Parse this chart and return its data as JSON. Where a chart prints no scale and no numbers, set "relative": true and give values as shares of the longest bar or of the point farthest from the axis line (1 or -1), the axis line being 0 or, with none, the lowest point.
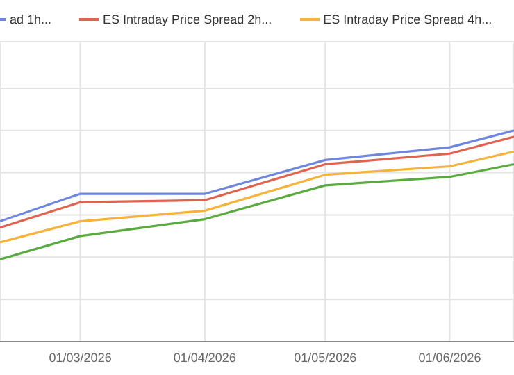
{
  "chart_data": {
    "type": "line",
    "relative": true,
    "x": [
      "2026-02-09",
      "2026-03-01",
      "2026-04-01",
      "2026-05-01",
      "2026-06-01",
      "2026-06-17"
    ],
    "xlim": [
      "2026-02-09",
      "2026-06-17"
    ],
    "xticks": [
      {
        "value": "2026-03-01",
        "label": "01/03/2026"
      },
      {
        "value": "2026-04-01",
        "label": "01/04/2026"
      },
      {
        "value": "2026-05-01",
        "label": "01/05/2026"
      },
      {
        "value": "2026-06-01",
        "label": "01/06/2026"
      }
    ],
    "series": [
      {
        "name": "ad 1h...",
        "color": "#6f86e0",
        "values": [
          0.57,
          0.7,
          0.7,
          0.86,
          0.92,
          1
        ]
      },
      {
        "name": "ES Intraday Price Spread 2h...",
        "color": "#e0634f",
        "values": [
          0.54,
          0.66,
          0.67,
          0.84,
          0.89,
          0.97
        ]
      },
      {
        "name": "ES Intraday Price Spread 4h...",
        "color": "#f7b23b",
        "values": [
          0.47,
          0.57,
          0.62,
          0.79,
          0.83,
          0.9
        ]
      },
      {
        "color": "#5aab3f",
        "values": [
          0.39,
          0.5,
          0.58,
          0.74,
          0.78,
          0.84
        ]
      }
    ],
    "grid": true,
    "legend": "top",
    "marker": "none",
    "line_style": "solid"
  }
}
